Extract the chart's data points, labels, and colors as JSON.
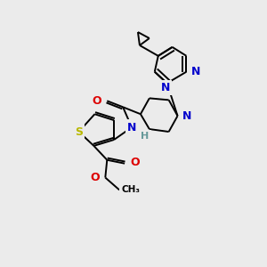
{
  "bg_color": "#ebebeb",
  "atom_colors": {
    "S": "#b8b800",
    "N": "#0000cc",
    "O": "#dd0000",
    "H": "#669999",
    "C": "#000000"
  },
  "bond_color": "#000000",
  "bond_lw": 1.4,
  "font_size": 8
}
